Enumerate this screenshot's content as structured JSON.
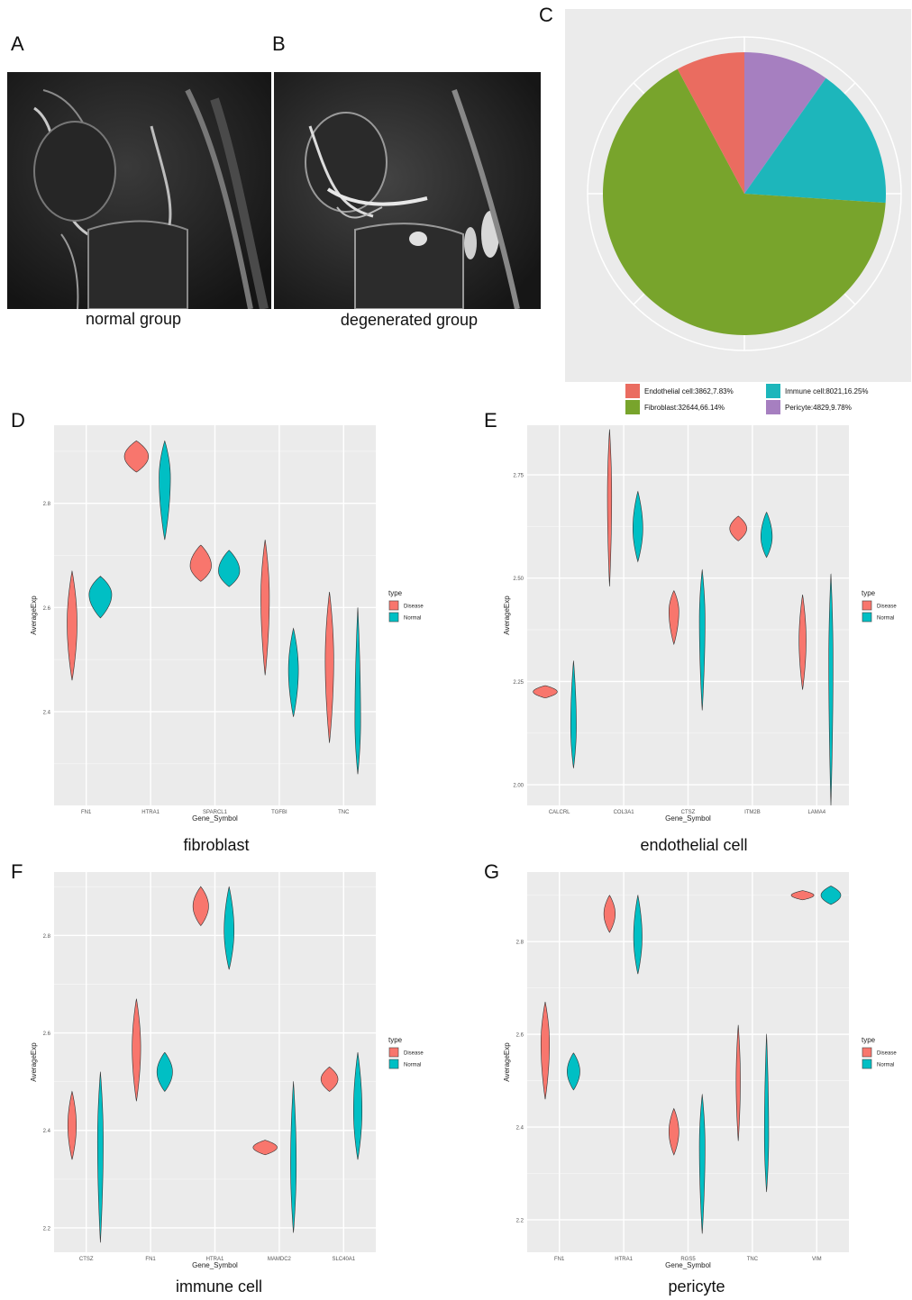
{
  "labels": {
    "A": "A",
    "B": "B",
    "C": "C",
    "D": "D",
    "E": "E",
    "F": "F",
    "G": "G"
  },
  "mri": {
    "normal_caption": "normal group",
    "degenerated_caption": "degenerated group"
  },
  "colors": {
    "disease": "#f8766d",
    "normal": "#00bfc4",
    "endothelial": "#ea6c60",
    "immune": "#1db6bb",
    "fibroblast": "#78a42c",
    "pericyte": "#a67fc0",
    "panel_bg": "#ebebeb"
  },
  "chart_data": [
    {
      "type": "pie",
      "slices": [
        {
          "label": "Endothelial cell:3862,7.83%",
          "value": 7.83,
          "color": "#ea6c60"
        },
        {
          "label": "Immune cell:8021,16.25%",
          "value": 16.25,
          "color": "#1db6bb"
        },
        {
          "label": "Fibroblast:32644,66.14%",
          "value": 66.14,
          "color": "#78a42c"
        },
        {
          "label": "Pericyte:4829,9.78%",
          "value": 9.78,
          "color": "#a67fc0"
        }
      ]
    },
    {
      "type": "violin",
      "caption": "fibroblast",
      "xlabel": "Gene_Symbol",
      "ylabel": "AverageExp",
      "ylim": [
        2.22,
        2.95
      ],
      "yticks": [
        2.4,
        2.6,
        2.8
      ],
      "categories": [
        "FN1",
        "HTRA1",
        "SPARCL1",
        "TGFBI",
        "TNC"
      ],
      "legend_title": "type",
      "legend": [
        "Disease",
        "Normal"
      ],
      "violins": [
        {
          "gene": "FN1",
          "disease": {
            "min": 2.46,
            "max": 2.67,
            "mode": 2.57,
            "w": 0.35
          },
          "normal": {
            "min": 2.58,
            "max": 2.66,
            "mode": 2.625,
            "w": 0.8
          }
        },
        {
          "gene": "HTRA1",
          "disease": {
            "min": 2.86,
            "max": 2.92,
            "mode": 2.89,
            "w": 0.85
          },
          "normal": {
            "min": 2.73,
            "max": 2.92,
            "mode": 2.85,
            "w": 0.4
          }
        },
        {
          "gene": "SPARCL1",
          "disease": {
            "min": 2.65,
            "max": 2.72,
            "mode": 2.68,
            "w": 0.75
          },
          "normal": {
            "min": 2.64,
            "max": 2.71,
            "mode": 2.67,
            "w": 0.75
          }
        },
        {
          "gene": "TGFBI",
          "disease": {
            "min": 2.47,
            "max": 2.73,
            "mode": 2.62,
            "w": 0.3
          },
          "normal": {
            "min": 2.39,
            "max": 2.56,
            "mode": 2.48,
            "w": 0.35
          }
        },
        {
          "gene": "TNC",
          "disease": {
            "min": 2.34,
            "max": 2.63,
            "mode": 2.5,
            "w": 0.3
          },
          "normal": {
            "min": 2.28,
            "max": 2.6,
            "mode": 2.38,
            "w": 0.2
          }
        }
      ]
    },
    {
      "type": "violin",
      "caption": "endothelial cell",
      "xlabel": "Gene_Symbol",
      "ylabel": "AverageExp",
      "ylim": [
        1.95,
        2.87
      ],
      "yticks": [
        2.0,
        2.25,
        2.5,
        2.75
      ],
      "ytick_labels": [
        "2.00",
        "2.25",
        "2.50",
        "2.75"
      ],
      "categories": [
        "CALCRL",
        "COL3A1",
        "CTSZ",
        "ITM2B",
        "LAMA4"
      ],
      "legend_title": "type",
      "legend": [
        "Disease",
        "Normal"
      ],
      "violins": [
        {
          "gene": "CALCRL",
          "disease": {
            "min": 2.21,
            "max": 2.24,
            "mode": 2.225,
            "w": 0.85
          },
          "normal": {
            "min": 2.04,
            "max": 2.3,
            "mode": 2.14,
            "w": 0.2
          }
        },
        {
          "gene": "COL3A1",
          "disease": {
            "min": 2.48,
            "max": 2.86,
            "mode": 2.7,
            "w": 0.15
          },
          "normal": {
            "min": 2.54,
            "max": 2.71,
            "mode": 2.62,
            "w": 0.35
          }
        },
        {
          "gene": "CTSZ",
          "disease": {
            "min": 2.34,
            "max": 2.47,
            "mode": 2.42,
            "w": 0.35
          },
          "normal": {
            "min": 2.18,
            "max": 2.52,
            "mode": 2.4,
            "w": 0.2
          }
        },
        {
          "gene": "ITM2B",
          "disease": {
            "min": 2.59,
            "max": 2.65,
            "mode": 2.62,
            "w": 0.6
          },
          "normal": {
            "min": 2.55,
            "max": 2.66,
            "mode": 2.6,
            "w": 0.4
          }
        },
        {
          "gene": "LAMA4",
          "disease": {
            "min": 2.23,
            "max": 2.46,
            "mode": 2.35,
            "w": 0.25
          },
          "normal": {
            "min": 1.95,
            "max": 2.51,
            "mode": 2.3,
            "w": 0.15
          }
        }
      ]
    },
    {
      "type": "violin",
      "caption": "immune cell",
      "xlabel": "Gene_Symbol",
      "ylabel": "AverageExp",
      "ylim": [
        2.15,
        2.93
      ],
      "yticks": [
        2.2,
        2.4,
        2.6,
        2.8
      ],
      "categories": [
        "CTSZ",
        "FN1",
        "HTRA1",
        "MAMDC2",
        "SLC40A1"
      ],
      "legend_title": "type",
      "legend": [
        "Disease",
        "Normal"
      ],
      "violins": [
        {
          "gene": "CTSZ",
          "disease": {
            "min": 2.34,
            "max": 2.48,
            "mode": 2.41,
            "w": 0.3
          },
          "normal": {
            "min": 2.17,
            "max": 2.52,
            "mode": 2.38,
            "w": 0.2
          }
        },
        {
          "gene": "FN1",
          "disease": {
            "min": 2.46,
            "max": 2.67,
            "mode": 2.57,
            "w": 0.3
          },
          "normal": {
            "min": 2.48,
            "max": 2.56,
            "mode": 2.52,
            "w": 0.55
          }
        },
        {
          "gene": "HTRA1",
          "disease": {
            "min": 2.82,
            "max": 2.9,
            "mode": 2.86,
            "w": 0.55
          },
          "normal": {
            "min": 2.73,
            "max": 2.9,
            "mode": 2.81,
            "w": 0.35
          }
        },
        {
          "gene": "MAMDC2",
          "disease": {
            "min": 2.35,
            "max": 2.38,
            "mode": 2.365,
            "w": 0.85
          },
          "normal": {
            "min": 2.19,
            "max": 2.5,
            "mode": 2.33,
            "w": 0.2
          }
        },
        {
          "gene": "SLC40A1",
          "disease": {
            "min": 2.48,
            "max": 2.53,
            "mode": 2.505,
            "w": 0.6
          },
          "normal": {
            "min": 2.34,
            "max": 2.56,
            "mode": 2.44,
            "w": 0.3
          }
        }
      ]
    },
    {
      "type": "violin",
      "caption": "pericyte",
      "xlabel": "Gene_Symbol",
      "ylabel": "AverageExp",
      "ylim": [
        2.13,
        2.95
      ],
      "yticks": [
        2.2,
        2.4,
        2.6,
        2.8
      ],
      "categories": [
        "FN1",
        "HTRA1",
        "RGS5",
        "TNC",
        "VIM"
      ],
      "legend_title": "type",
      "legend": [
        "Disease",
        "Normal"
      ],
      "violins": [
        {
          "gene": "FN1",
          "disease": {
            "min": 2.46,
            "max": 2.67,
            "mode": 2.58,
            "w": 0.3
          },
          "normal": {
            "min": 2.48,
            "max": 2.56,
            "mode": 2.52,
            "w": 0.45
          }
        },
        {
          "gene": "HTRA1",
          "disease": {
            "min": 2.82,
            "max": 2.9,
            "mode": 2.86,
            "w": 0.4
          },
          "normal": {
            "min": 2.73,
            "max": 2.9,
            "mode": 2.81,
            "w": 0.3
          }
        },
        {
          "gene": "RGS5",
          "disease": {
            "min": 2.34,
            "max": 2.44,
            "mode": 2.39,
            "w": 0.35
          },
          "normal": {
            "min": 2.17,
            "max": 2.47,
            "mode": 2.36,
            "w": 0.2
          }
        },
        {
          "gene": "TNC",
          "disease": {
            "min": 2.37,
            "max": 2.62,
            "mode": 2.5,
            "w": 0.15
          },
          "normal": {
            "min": 2.26,
            "max": 2.6,
            "mode": 2.38,
            "w": 0.15
          }
        },
        {
          "gene": "VIM",
          "disease": {
            "min": 2.89,
            "max": 2.91,
            "mode": 2.9,
            "w": 0.8
          },
          "normal": {
            "min": 2.88,
            "max": 2.92,
            "mode": 2.9,
            "w": 0.7
          }
        }
      ]
    }
  ]
}
